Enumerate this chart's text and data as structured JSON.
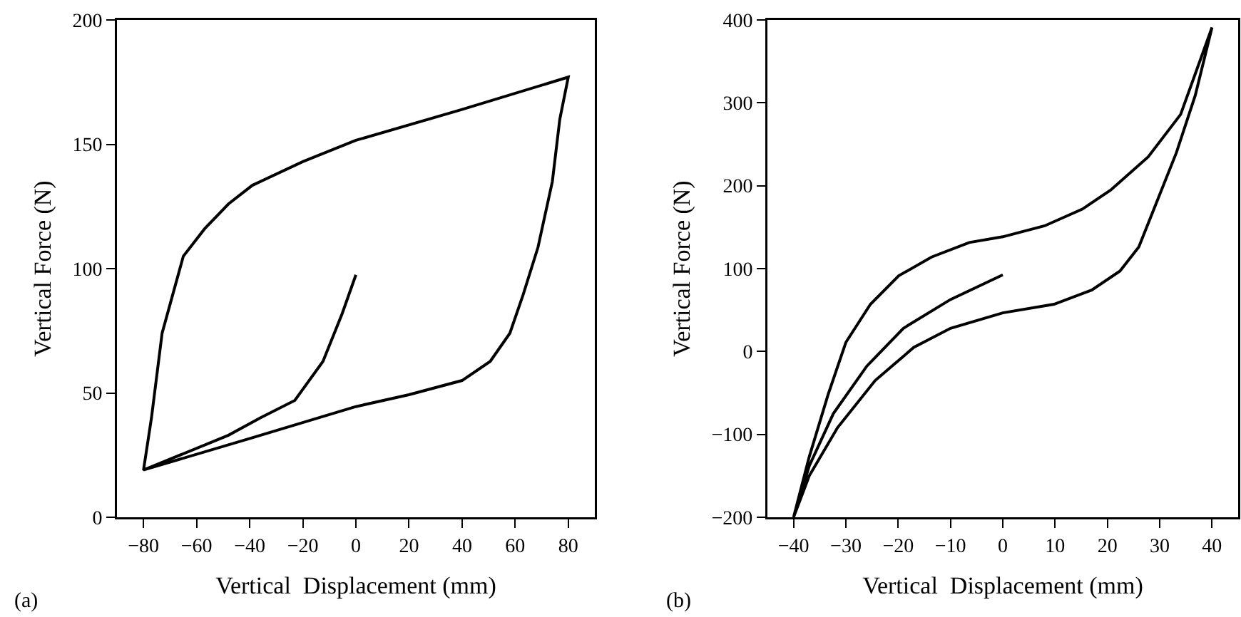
{
  "chart_data": [
    {
      "type": "line",
      "xlabel": "Vertical  Displacement (mm)",
      "ylabel": "Vertical Force (N)",
      "annotations": [
        "(a)"
      ],
      "xlim": [
        -90,
        90
      ],
      "xticks": [
        -80,
        -60,
        -40,
        -20,
        0,
        20,
        40,
        60,
        80
      ],
      "ylim": [
        0,
        200
      ],
      "yticks": [
        0,
        50,
        100,
        150,
        200
      ],
      "grid": false,
      "series": [
        {
          "color": "#000000",
          "x": [
            0,
            -5.2,
            -12.4,
            -23,
            -36,
            -48,
            -80,
            -77,
            -73,
            -69,
            -65,
            -57,
            -48,
            -39,
            -20,
            0,
            40,
            80,
            76.8,
            74,
            68.6,
            63,
            58,
            50.6,
            40,
            20,
            0,
            -39,
            -80
          ],
          "values": [
            97.5,
            81.8,
            62.7,
            47,
            40,
            33,
            19,
            40,
            74,
            89.5,
            105,
            116,
            126,
            133.5,
            143,
            151.6,
            164,
            177,
            160,
            135,
            108.6,
            89.5,
            74,
            62.7,
            55,
            49.3,
            44.5,
            32,
            19
          ]
        }
      ]
    },
    {
      "type": "line",
      "xlabel": "Vertical  Displacement (mm)",
      "ylabel": "Vertical Force (N)",
      "annotations": [
        "(b)"
      ],
      "xlim": [
        -45,
        45
      ],
      "xticks": [
        -40,
        -30,
        -20,
        -10,
        0,
        10,
        20,
        30,
        40
      ],
      "ylim": [
        -200,
        400
      ],
      "yticks": [
        -200,
        -100,
        0,
        100,
        200,
        300,
        400
      ],
      "grid": false,
      "series": [
        {
          "color": "#000000",
          "x": [
            0,
            -10,
            -19,
            -26,
            -32.4,
            -37,
            -40,
            -37,
            -33.4,
            -30,
            -25.3,
            -19.9,
            -13.6,
            -6.4,
            0,
            8,
            15.2,
            20.6,
            27.8,
            34,
            40,
            36.8,
            33.2,
            29.6,
            26,
            22.4,
            17,
            9.8,
            0,
            -10,
            -17,
            -24.4,
            -31.6,
            -37,
            -40
          ],
          "values": [
            92.5,
            62.7,
            28,
            -17.7,
            -75,
            -138,
            -200,
            -127,
            -52,
            11,
            57,
            91.3,
            114,
            131.5,
            138.4,
            151.6,
            171.7,
            194.6,
            234.8,
            286,
            391,
            309,
            240,
            183,
            126,
            97,
            74,
            57,
            46.6,
            28,
            5,
            -35,
            -92,
            -150,
            -200
          ]
        }
      ]
    }
  ]
}
